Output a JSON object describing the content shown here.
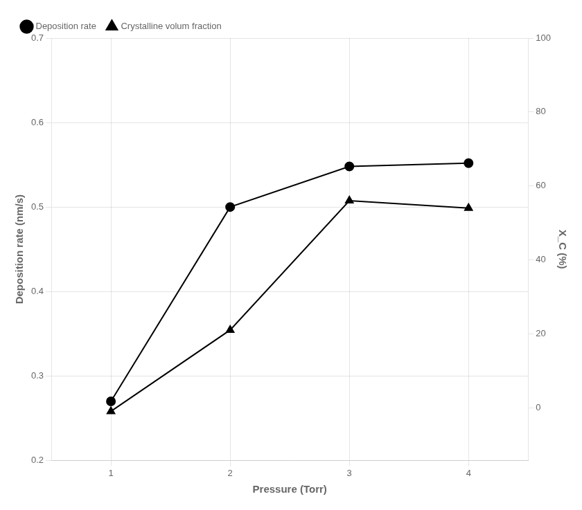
{
  "chart_data": {
    "type": "line",
    "x": [
      1,
      2,
      3,
      4
    ],
    "series": [
      {
        "name": "Deposition rate",
        "color": "black",
        "marker": "circle",
        "values": [
          0.27,
          0.5,
          0.548,
          0.552
        ]
      },
      {
        "name": "Crystalline volum fraction",
        "color": "black",
        "marker": "triangle",
        "values": [
          -1,
          21,
          56,
          54
        ],
        "axis": "y2"
      }
    ],
    "xlabel": "Pressure (Torr)",
    "ylabel": "Deposition rate (nm/s)",
    "y2label": "X_C (%)",
    "xlim": [
      0.5,
      4.5
    ],
    "xticks": [
      1,
      2,
      3,
      4
    ],
    "ylim": [
      0.2,
      0.7
    ],
    "yticks": [
      0.2,
      0.3,
      0.4,
      0.5,
      0.6,
      0.7
    ],
    "y2lim": [
      -14.286,
      100
    ],
    "y2ticks": [
      0,
      20,
      40,
      60,
      80,
      100
    ],
    "grid": true,
    "legend": "upper left"
  }
}
